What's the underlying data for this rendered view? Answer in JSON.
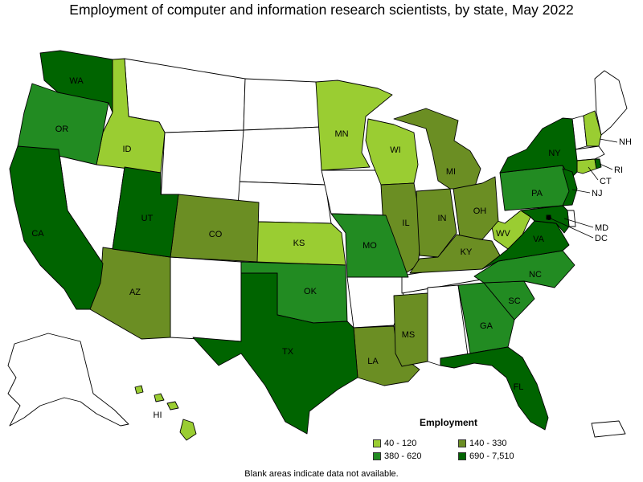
{
  "title": "Employment of computer and information research scientists, by state, May 2022",
  "legend": {
    "title": "Employment",
    "items": [
      {
        "label": "40 - 120",
        "color": "#9acd32"
      },
      {
        "label": "140 - 330",
        "color": "#6b8e23"
      },
      {
        "label": "380 - 620",
        "color": "#228b22"
      },
      {
        "label": "690 - 7,510",
        "color": "#006400"
      }
    ]
  },
  "footnote": "Blank areas indicate data not available.",
  "state_labels": [
    "WA",
    "OR",
    "ID",
    "CA",
    "UT",
    "AZ",
    "CO",
    "MN",
    "WI",
    "KS",
    "MO",
    "IL",
    "IN",
    "MI",
    "OH",
    "KY",
    "TX",
    "OK",
    "LA",
    "MS",
    "GA",
    "SC",
    "NC",
    "VA",
    "WV",
    "PA",
    "NY",
    "NH",
    "CT",
    "RI",
    "NJ",
    "MD",
    "DC",
    "FL",
    "HI"
  ]
}
